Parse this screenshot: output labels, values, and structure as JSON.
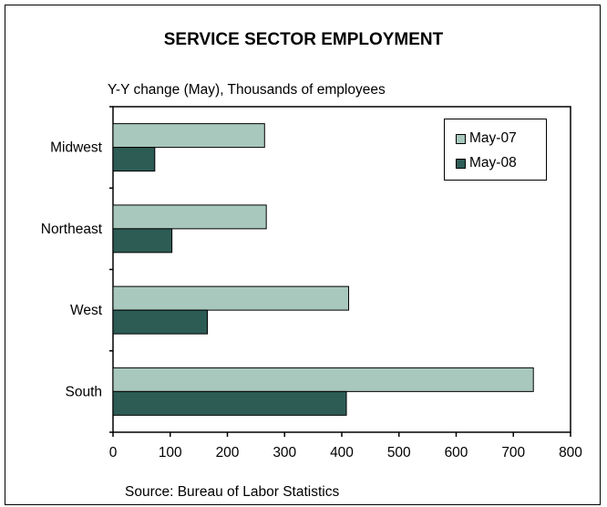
{
  "chart_data": {
    "type": "bar",
    "orientation": "horizontal",
    "title": "SERVICE SECTOR EMPLOYMENT",
    "subtitle": "Y-Y change (May), Thousands of employees",
    "source": "Source: Bureau of Labor Statistics",
    "categories": [
      "Midwest",
      "Northeast",
      "West",
      "South"
    ],
    "series": [
      {
        "name": "May-07",
        "color": "#a8c8bd",
        "values": [
          265,
          268,
          412,
          735
        ]
      },
      {
        "name": "May-08",
        "color": "#2d5c55",
        "values": [
          73,
          103,
          165,
          408
        ]
      }
    ],
    "xlim": [
      0,
      800
    ],
    "xticks": [
      "0",
      "100",
      "200",
      "300",
      "400",
      "500",
      "600",
      "700",
      "800"
    ],
    "grid": false,
    "legend_position": "top-right"
  }
}
